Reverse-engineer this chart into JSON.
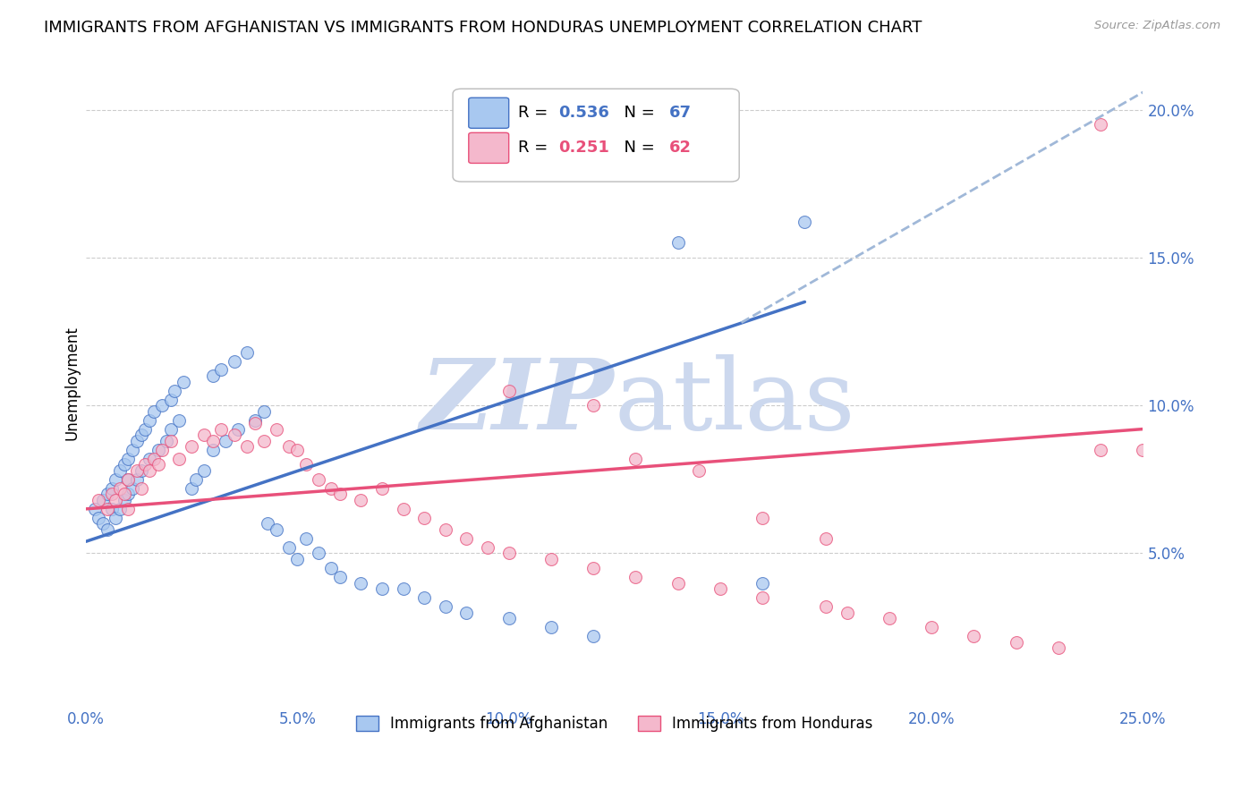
{
  "title": "IMMIGRANTS FROM AFGHANISTAN VS IMMIGRANTS FROM HONDURAS UNEMPLOYMENT CORRELATION CHART",
  "source": "Source: ZipAtlas.com",
  "ylabel": "Unemployment",
  "xlim": [
    0.0,
    0.25
  ],
  "ylim": [
    0.0,
    0.215
  ],
  "xticks": [
    0.0,
    0.05,
    0.1,
    0.15,
    0.2,
    0.25
  ],
  "xtick_labels": [
    "0.0%",
    "5.0%",
    "10.0%",
    "15.0%",
    "20.0%",
    "25.0%"
  ],
  "yticks": [
    0.05,
    0.1,
    0.15,
    0.2
  ],
  "ytick_labels": [
    "5.0%",
    "10.0%",
    "15.0%",
    "20.0%"
  ],
  "afghanistan_color": "#a8c8f0",
  "honduras_color": "#f4b8cc",
  "regression_blue": "#4472c4",
  "regression_pink": "#e8507a",
  "dashed_line_color": "#a0b8d8",
  "watermark_color": "#ccd8ee",
  "legend_R_afghanistan": "0.536",
  "legend_N_afghanistan": "67",
  "legend_R_honduras": "0.251",
  "legend_N_honduras": "62",
  "legend_label_afghanistan": "Immigrants from Afghanistan",
  "legend_label_honduras": "Immigrants from Honduras",
  "title_fontsize": 13,
  "axis_label_fontsize": 12,
  "tick_fontsize": 12,
  "afghanistan_x": [
    0.002,
    0.003,
    0.004,
    0.004,
    0.005,
    0.005,
    0.006,
    0.006,
    0.007,
    0.007,
    0.008,
    0.008,
    0.009,
    0.009,
    0.01,
    0.01,
    0.01,
    0.011,
    0.011,
    0.012,
    0.012,
    0.013,
    0.013,
    0.014,
    0.015,
    0.015,
    0.016,
    0.017,
    0.018,
    0.019,
    0.02,
    0.02,
    0.021,
    0.022,
    0.023,
    0.025,
    0.026,
    0.028,
    0.03,
    0.03,
    0.032,
    0.033,
    0.035,
    0.036,
    0.038,
    0.04,
    0.042,
    0.043,
    0.045,
    0.048,
    0.05,
    0.052,
    0.055,
    0.058,
    0.06,
    0.065,
    0.07,
    0.075,
    0.08,
    0.085,
    0.09,
    0.1,
    0.11,
    0.12,
    0.14,
    0.16,
    0.17
  ],
  "afghanistan_y": [
    0.065,
    0.062,
    0.068,
    0.06,
    0.07,
    0.058,
    0.072,
    0.065,
    0.075,
    0.062,
    0.078,
    0.065,
    0.08,
    0.068,
    0.082,
    0.075,
    0.07,
    0.085,
    0.072,
    0.088,
    0.075,
    0.09,
    0.078,
    0.092,
    0.095,
    0.082,
    0.098,
    0.085,
    0.1,
    0.088,
    0.102,
    0.092,
    0.105,
    0.095,
    0.108,
    0.072,
    0.075,
    0.078,
    0.11,
    0.085,
    0.112,
    0.088,
    0.115,
    0.092,
    0.118,
    0.095,
    0.098,
    0.06,
    0.058,
    0.052,
    0.048,
    0.055,
    0.05,
    0.045,
    0.042,
    0.04,
    0.038,
    0.038,
    0.035,
    0.032,
    0.03,
    0.028,
    0.025,
    0.022,
    0.155,
    0.04,
    0.162
  ],
  "honduras_x": [
    0.003,
    0.005,
    0.006,
    0.007,
    0.008,
    0.009,
    0.01,
    0.01,
    0.012,
    0.013,
    0.014,
    0.015,
    0.016,
    0.017,
    0.018,
    0.02,
    0.022,
    0.025,
    0.028,
    0.03,
    0.032,
    0.035,
    0.038,
    0.04,
    0.042,
    0.045,
    0.048,
    0.05,
    0.052,
    0.055,
    0.058,
    0.06,
    0.065,
    0.07,
    0.075,
    0.08,
    0.085,
    0.09,
    0.095,
    0.1,
    0.11,
    0.12,
    0.13,
    0.14,
    0.15,
    0.16,
    0.175,
    0.18,
    0.19,
    0.2,
    0.21,
    0.22,
    0.23,
    0.24,
    0.1,
    0.12,
    0.13,
    0.145,
    0.16,
    0.175,
    0.24,
    0.25
  ],
  "honduras_y": [
    0.068,
    0.065,
    0.07,
    0.068,
    0.072,
    0.07,
    0.075,
    0.065,
    0.078,
    0.072,
    0.08,
    0.078,
    0.082,
    0.08,
    0.085,
    0.088,
    0.082,
    0.086,
    0.09,
    0.088,
    0.092,
    0.09,
    0.086,
    0.094,
    0.088,
    0.092,
    0.086,
    0.085,
    0.08,
    0.075,
    0.072,
    0.07,
    0.068,
    0.072,
    0.065,
    0.062,
    0.058,
    0.055,
    0.052,
    0.05,
    0.048,
    0.045,
    0.042,
    0.04,
    0.038,
    0.035,
    0.032,
    0.03,
    0.028,
    0.025,
    0.022,
    0.02,
    0.018,
    0.085,
    0.105,
    0.1,
    0.082,
    0.078,
    0.062,
    0.055,
    0.195,
    0.085
  ]
}
